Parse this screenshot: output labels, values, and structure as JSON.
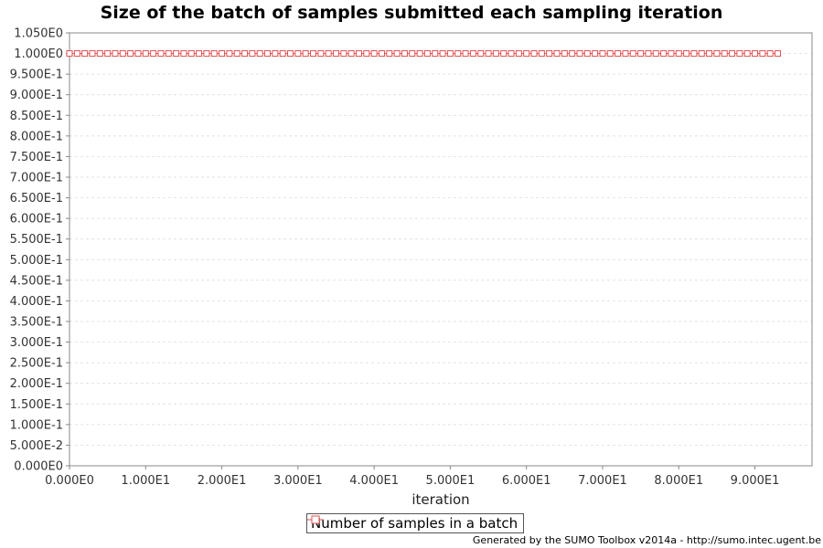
{
  "chart_data": {
    "type": "line",
    "title": "Size of the batch of samples submitted each sampling iteration",
    "xlabel": "iteration",
    "ylabel": "",
    "xlim": [
      0,
      97.5
    ],
    "ylim": [
      0,
      1.05
    ],
    "x_ticks": [
      0,
      10,
      20,
      30,
      40,
      50,
      60,
      70,
      80,
      90
    ],
    "x_tick_labels": [
      "0.000E0",
      "1.000E1",
      "2.000E1",
      "3.000E1",
      "4.000E1",
      "5.000E1",
      "6.000E1",
      "7.000E1",
      "8.000E1",
      "9.000E1"
    ],
    "y_ticks": [
      0,
      0.05,
      0.1,
      0.15,
      0.2,
      0.25,
      0.3,
      0.35,
      0.4,
      0.45,
      0.5,
      0.55,
      0.6,
      0.65,
      0.7,
      0.75,
      0.8,
      0.85,
      0.9,
      0.95,
      1.0,
      1.05
    ],
    "y_tick_labels": [
      "0.000E0",
      "5.000E-2",
      "1.000E-1",
      "1.500E-1",
      "2.000E-1",
      "2.500E-1",
      "3.000E-1",
      "3.500E-1",
      "4.000E-1",
      "4.500E-1",
      "5.000E-1",
      "5.500E-1",
      "6.000E-1",
      "6.500E-1",
      "7.000E-1",
      "7.500E-1",
      "8.000E-1",
      "8.500E-1",
      "9.000E-1",
      "9.500E-1",
      "1.000E0",
      "1.050E0"
    ],
    "grid": true,
    "legend_position": "bottom-center",
    "series": [
      {
        "name": "Number of samples in a batch",
        "color": "#e05050",
        "marker": "square",
        "x_start": 0,
        "x_end": 93,
        "x_step": 1,
        "values_constant": 1.0
      }
    ]
  },
  "footer": "Generated by the SUMO Toolbox v2014a - http://sumo.intec.ugent.be"
}
